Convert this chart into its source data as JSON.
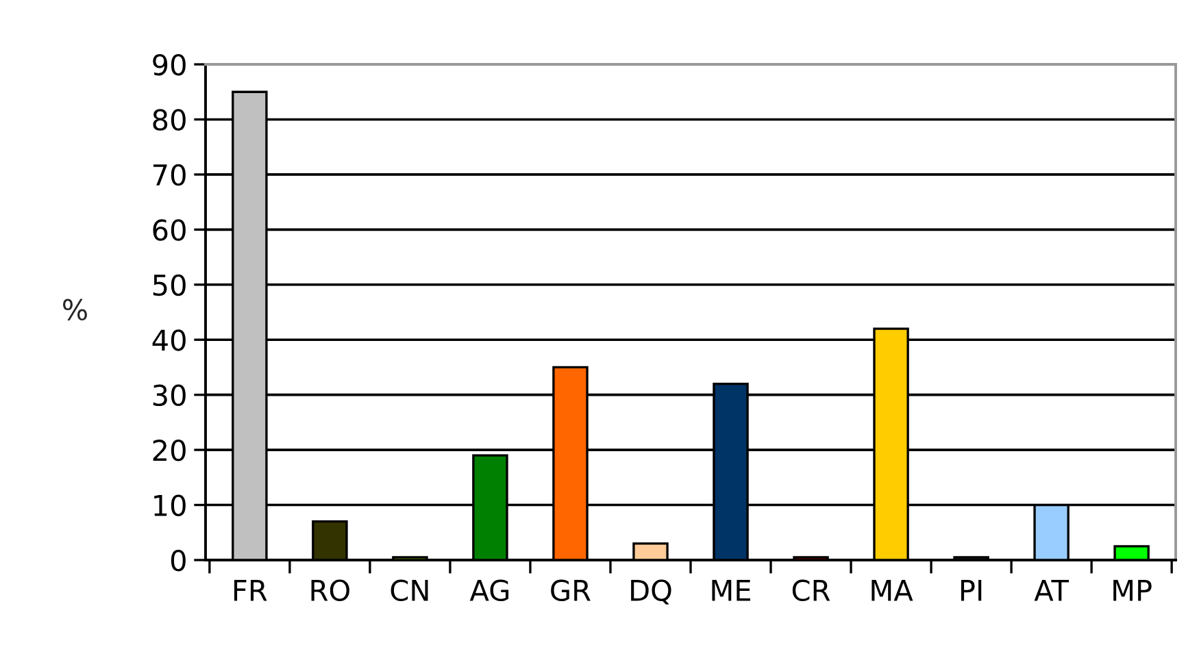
{
  "chart_data": {
    "type": "bar",
    "ylabel": "%",
    "categories": [
      "FR",
      "RO",
      "CN",
      "AG",
      "GR",
      "DQ",
      "ME",
      "CR",
      "MA",
      "PI",
      "AT",
      "MP"
    ],
    "values": [
      85,
      7,
      0.5,
      19,
      35,
      3,
      32,
      0.5,
      42,
      0.5,
      10,
      2.5
    ],
    "colors": [
      "#c0c0c0",
      "#333300",
      "#99cc00",
      "#008000",
      "#ff6600",
      "#ffcc99",
      "#003366",
      "#cc0000",
      "#ffcc00",
      "#333333",
      "#99ccff",
      "#00ff00"
    ],
    "ylim": [
      0,
      90
    ],
    "yticks": [
      0,
      10,
      20,
      30,
      40,
      50,
      60,
      70,
      80,
      90
    ],
    "grid": "y",
    "legend": false
  }
}
